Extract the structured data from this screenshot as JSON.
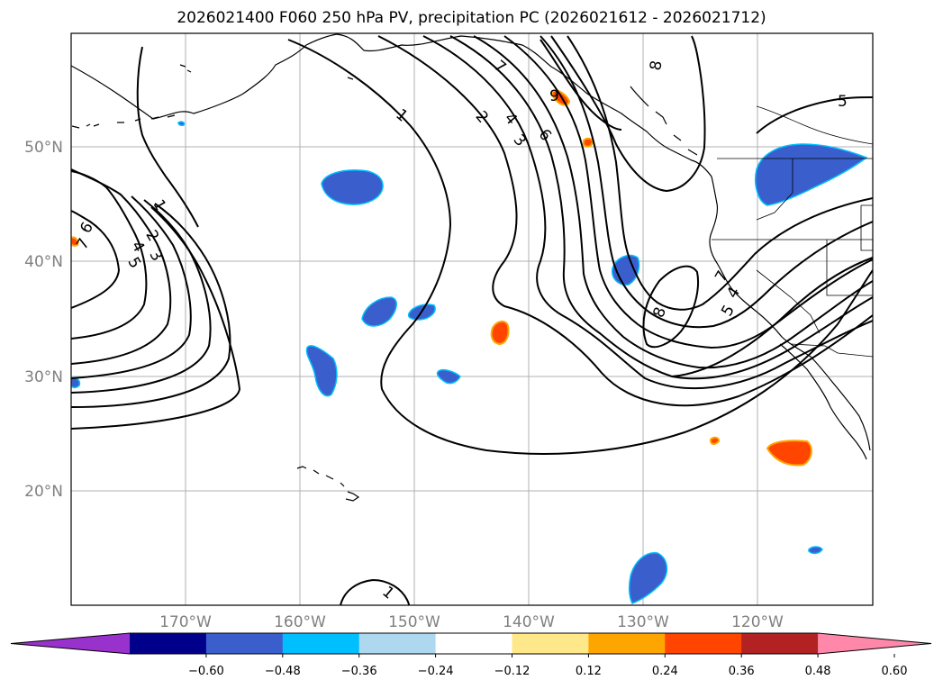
{
  "title": "2026021400 F060 250 hPa PV, precipitation PC (2026021612 - 2026021712)",
  "longitude_labels": [
    "170°W",
    "160°W",
    "150°W",
    "140°W",
    "130°W",
    "120°W"
  ],
  "latitude_labels": [
    "50°N",
    "40°N",
    "30°N",
    "20°N"
  ],
  "colorbar": {
    "ticks": [
      "−0.60",
      "−0.48",
      "−0.36",
      "−0.24",
      "−0.12",
      "0.12",
      "0.24",
      "0.36",
      "0.48",
      "0.60"
    ],
    "colors": [
      "#9932cc",
      "#00008b",
      "#3a5fcd",
      "#00bfff",
      "#add8f0",
      "#ffffff",
      "#fee88a",
      "#ffa500",
      "#ff4500",
      "#b22222",
      "#ff88aa"
    ]
  },
  "contour_labels": [
    "1",
    "1",
    "2",
    "4",
    "3",
    "6",
    "7",
    "8",
    "9",
    "5",
    "6",
    "7",
    "4",
    "5",
    "2",
    "3",
    "8",
    "7",
    "4",
    "5",
    "1"
  ],
  "precip_colors": {
    "negative": "#3a5fcd",
    "negative_edge": "#00bfff",
    "positive": "#ff4500",
    "positive_edge": "#ffa500"
  }
}
